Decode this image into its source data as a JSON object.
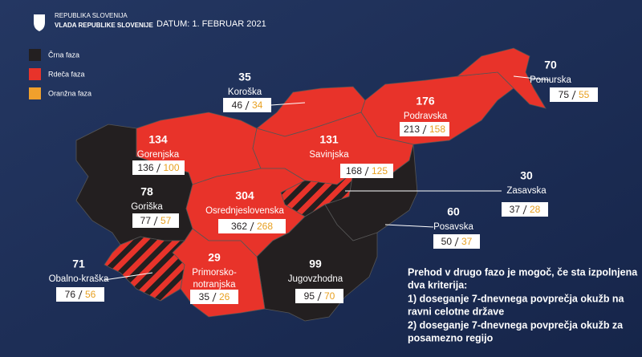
{
  "header": {
    "org_lines": [
      "REPUBLIKA SLOVENIJA",
      "VLADA REPUBLIKE SLOVENIJE"
    ],
    "date": "DATUM: 1. FEBRUAR 2021"
  },
  "legend": [
    "Črna faza",
    "Rdeča faza",
    "Oranžna faza"
  ],
  "regions": [
    {
      "name_lines": [
        "Koroška"
      ],
      "count": 35,
      "values": [
        46,
        34
      ]
    },
    {
      "name_lines": [
        "Pomurska"
      ],
      "count": 70,
      "values": [
        75,
        55
      ]
    },
    {
      "name_lines": [
        "Podravska"
      ],
      "count": 176,
      "values": [
        213,
        158
      ]
    },
    {
      "name_lines": [
        "Gorenjska"
      ],
      "count": 134,
      "values": [
        136,
        100
      ]
    },
    {
      "name_lines": [
        "Savinjska"
      ],
      "count": 131,
      "values": [
        168,
        125
      ]
    },
    {
      "name_lines": [
        "Zasavska"
      ],
      "count": 30,
      "values": [
        37,
        28
      ]
    },
    {
      "name_lines": [
        "Goriška"
      ],
      "count": 78,
      "values": [
        77,
        57
      ]
    },
    {
      "name_lines": [
        "Osrednjeslovenska"
      ],
      "count": 304,
      "values": [
        362,
        268
      ]
    },
    {
      "name_lines": [
        "Posavska"
      ],
      "count": 60,
      "values": [
        50,
        37
      ]
    },
    {
      "name_lines": [
        "Obalno-kraška"
      ],
      "count": 71,
      "values": [
        76,
        56
      ]
    },
    {
      "name_lines": [
        "Primorsko-",
        "notranjska"
      ],
      "count": 29,
      "values": [
        35,
        26
      ]
    },
    {
      "name_lines": [
        "Jugovzhodna"
      ],
      "count": 99,
      "values": [
        95,
        70
      ]
    }
  ],
  "note_lines": [
    "Prehod v drugo fazo je mogoč, če sta izpolnjena",
    "dva kriterija:",
    "1) doseganje 7-dnevnega povprečja okužb na",
    "ravni celotne države",
    "2) doseganje 7-dnevnega povprečja okužb za",
    "posamezno regijo"
  ]
}
